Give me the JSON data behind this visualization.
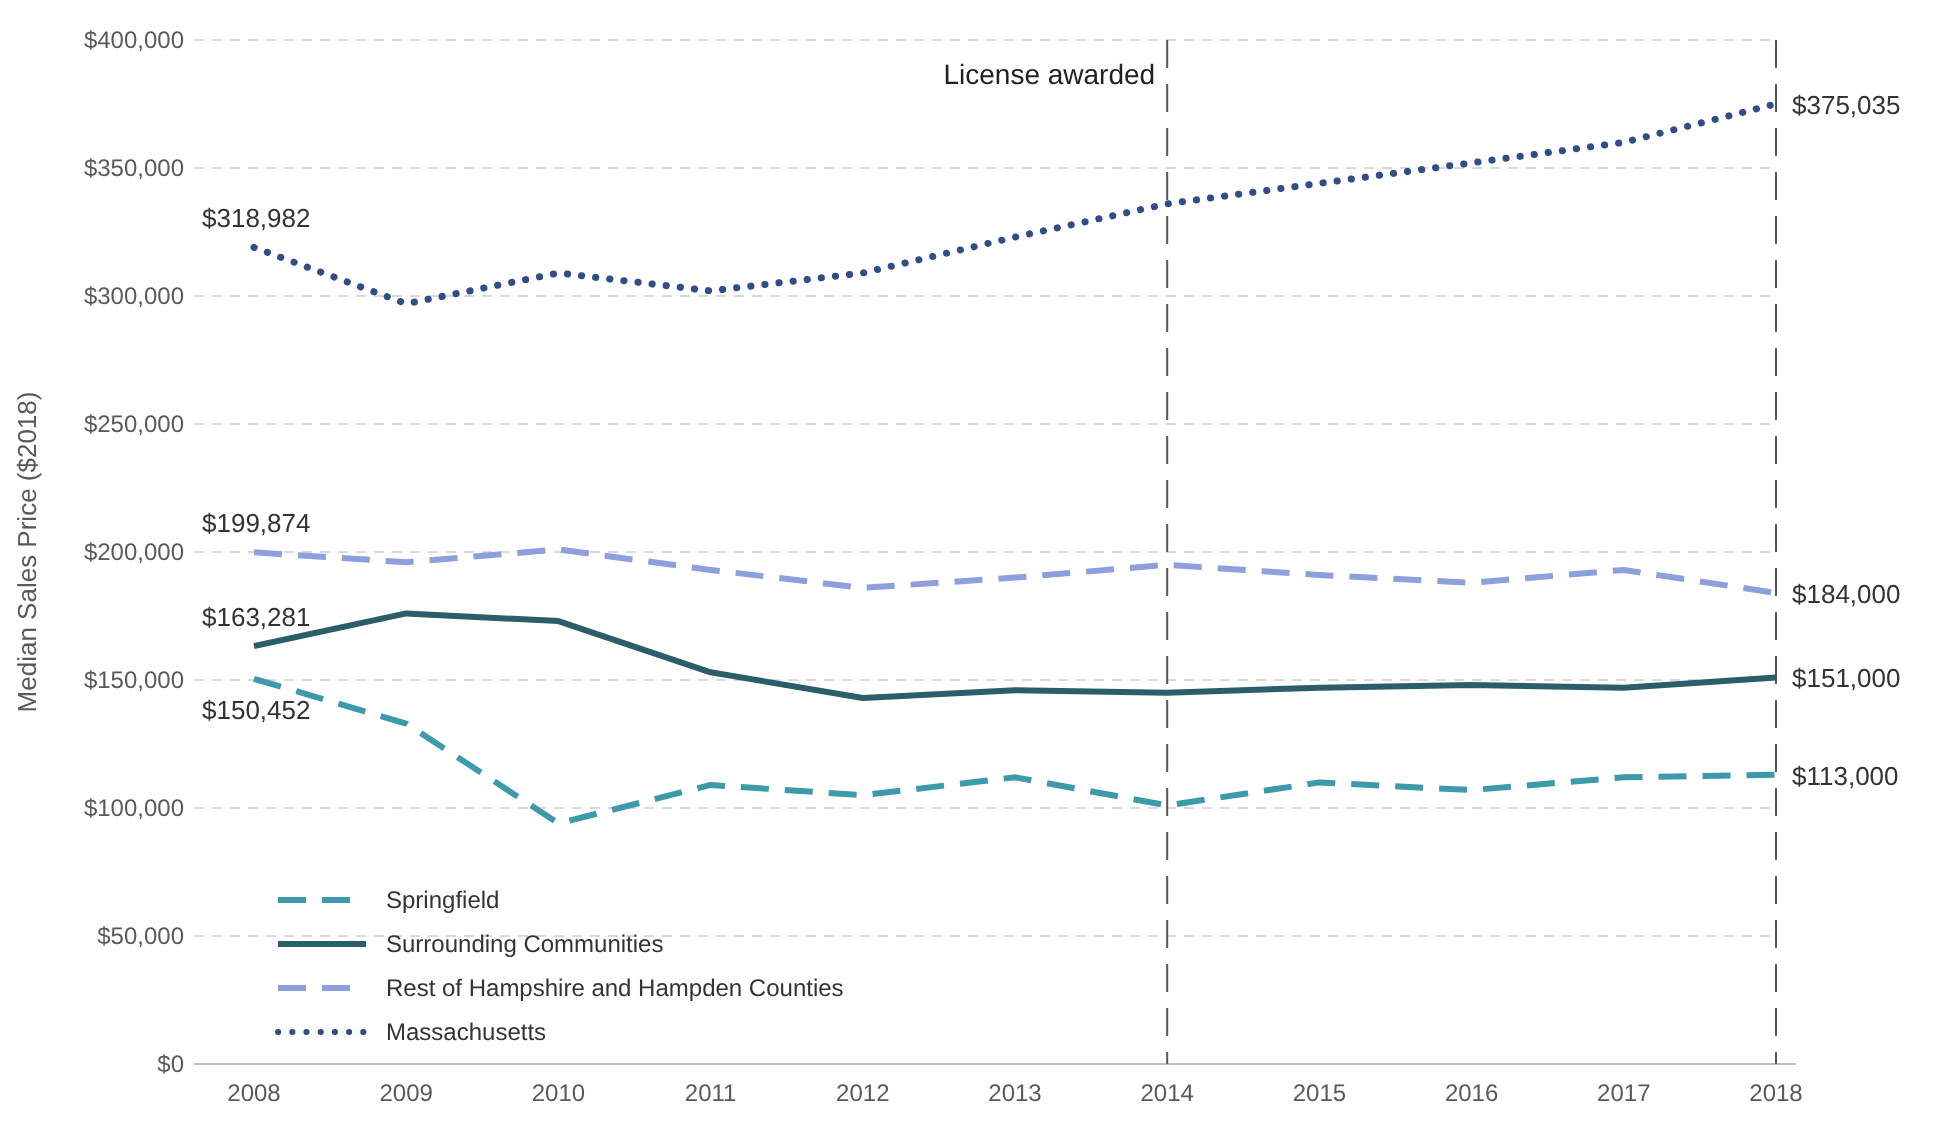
{
  "chart_data": {
    "type": "line",
    "ylabel": "Median Sales Price ($2018)",
    "categories": [
      "2008",
      "2009",
      "2010",
      "2011",
      "2012",
      "2013",
      "2014",
      "2015",
      "2016",
      "2017",
      "2018"
    ],
    "ylim": [
      0,
      400000
    ],
    "yticks": [
      {
        "value": 0,
        "label": "$0"
      },
      {
        "value": 50000,
        "label": "$50,000"
      },
      {
        "value": 100000,
        "label": "$100,000"
      },
      {
        "value": 150000,
        "label": "$150,000"
      },
      {
        "value": 200000,
        "label": "$200,000"
      },
      {
        "value": 250000,
        "label": "$250,000"
      },
      {
        "value": 300000,
        "label": "$300,000"
      },
      {
        "value": 350000,
        "label": "$350,000"
      },
      {
        "value": 400000,
        "label": "$400,000"
      }
    ],
    "grid": "y",
    "legend": "bottom left",
    "marker": "none",
    "series": [
      {
        "name": "Springfield",
        "color": "#3c9aab",
        "line_style": "dashed",
        "values": [
          150452,
          133000,
          94000,
          109000,
          105000,
          112000,
          101000,
          110000,
          107000,
          112000,
          113000
        ],
        "value_labels": [
          "$150,452",
          null,
          null,
          null,
          null,
          null,
          null,
          null,
          null,
          null,
          "$113,000"
        ]
      },
      {
        "name": "Surrounding Communities",
        "color": "#2b5e6a",
        "line_style": "solid",
        "values": [
          163281,
          176000,
          173000,
          153000,
          143000,
          146000,
          145000,
          147000,
          148000,
          147000,
          151000
        ],
        "value_labels": [
          "$163,281",
          null,
          null,
          null,
          null,
          null,
          null,
          null,
          null,
          null,
          "$151,000"
        ]
      },
      {
        "name": "Rest of Hampshire and Hampden Counties",
        "color": "#8d9fdc",
        "line_style": "dashed",
        "values": [
          199874,
          196000,
          201000,
          193000,
          186000,
          190000,
          195000,
          191000,
          188000,
          193000,
          184000
        ],
        "value_labels": [
          "$199,874",
          null,
          null,
          null,
          null,
          null,
          null,
          null,
          null,
          null,
          "$184,000"
        ]
      },
      {
        "name": "Massachusetts",
        "color": "#2f4d86",
        "line_style": "dotted",
        "values": [
          318982,
          297000,
          309000,
          302000,
          309000,
          323000,
          336000,
          344000,
          352000,
          360000,
          375035
        ],
        "value_labels": [
          "$318,982",
          null,
          null,
          null,
          null,
          null,
          null,
          null,
          null,
          null,
          "$375,035"
        ]
      }
    ],
    "ref_lines": [
      {
        "axis": "x",
        "value": "2014",
        "label": "License awarded",
        "color": "#555555",
        "line_style": "dashed"
      },
      {
        "axis": "x",
        "value": "2018",
        "color": "#555555",
        "line_style": "dashed"
      }
    ]
  }
}
